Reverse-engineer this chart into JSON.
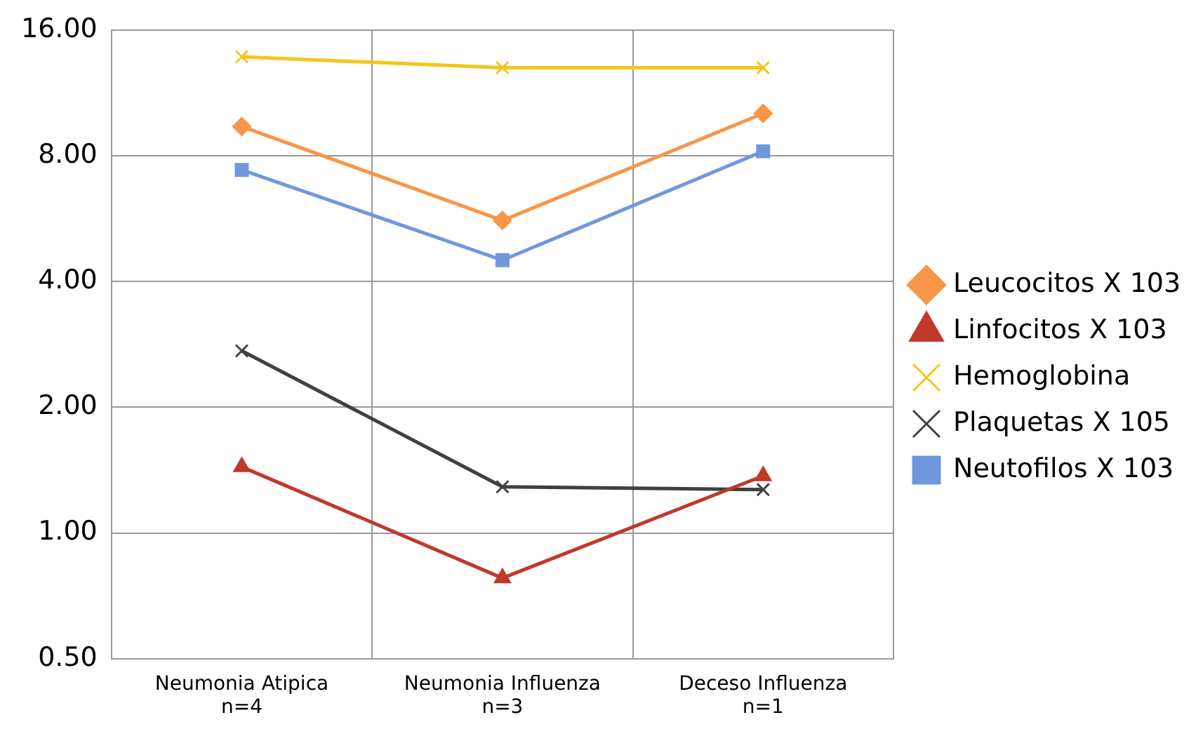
{
  "chart_data": {
    "type": "line",
    "categories": [
      "Neumonia Atipica\nn=4",
      "Neumonia Influenza\nn=3",
      "Deceso Influenza\nn=1"
    ],
    "series": [
      {
        "name": "Leucocitos X 103",
        "color": "#f79646",
        "marker": "diamond",
        "values": [
          9.4,
          5.6,
          10.1
        ]
      },
      {
        "name": "Linfocitos X 103",
        "color": "#c0392b",
        "marker": "triangle",
        "values": [
          1.44,
          0.78,
          1.37
        ]
      },
      {
        "name": "Hemoglobina",
        "color": "#f5c518",
        "marker": "cross",
        "values": [
          13.8,
          13.0,
          13.0
        ]
      },
      {
        "name": "Plaquetas X 105",
        "color": "#404040",
        "marker": "cross",
        "values": [
          2.73,
          1.29,
          1.27
        ]
      },
      {
        "name": "Neutofilos X 103",
        "color": "#6f97de",
        "marker": "square",
        "values": [
          7.4,
          4.5,
          8.2
        ]
      }
    ],
    "log": "y",
    "ylim": [
      0.5,
      16
    ],
    "yticks": [
      {
        "value": 0.5,
        "label": "0.50"
      },
      {
        "value": 1,
        "label": "1.00"
      },
      {
        "value": 2,
        "label": "2.00"
      },
      {
        "value": 4,
        "label": "4.00"
      },
      {
        "value": 8,
        "label": "8.00"
      },
      {
        "value": 16,
        "label": "16.00"
      }
    ],
    "grid": true,
    "legend": "right"
  }
}
